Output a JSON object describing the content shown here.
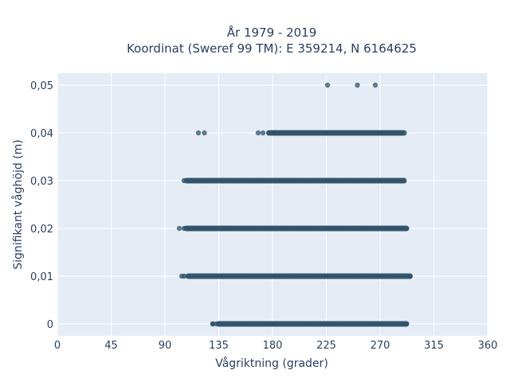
{
  "chart_data": {
    "type": "scatter",
    "title_line1": "År 1979 - 2019",
    "title_line2": "Koordinat (Sweref 99 TM): E 359214, N 6164625",
    "xlabel": "Vågriktning (grader)",
    "ylabel": "Signifikant våghöjd (m)",
    "xlim": [
      0,
      360
    ],
    "ylim": [
      -0.0025,
      0.0525
    ],
    "x_ticks": [
      0,
      45,
      90,
      135,
      180,
      225,
      270,
      315,
      360
    ],
    "x_tick_labels": [
      "0",
      "45",
      "90",
      "135",
      "180",
      "225",
      "270",
      "315",
      "360"
    ],
    "y_ticks": [
      0,
      0.01,
      0.02,
      0.03,
      0.04,
      0.05
    ],
    "y_tick_labels": [
      "0",
      "0,01",
      "0,02",
      "0,03",
      "0,04",
      "0,05"
    ],
    "grid": true,
    "plot_background": "#e5ecf6",
    "point_color": "#2f5369",
    "bands": [
      {
        "y": 0.0,
        "x_start": 130,
        "x_end": 292,
        "dense_start": 135
      },
      {
        "y": 0.01,
        "x_start": 106,
        "x_end": 295,
        "dense_start": 110
      },
      {
        "y": 0.02,
        "x_start": 106,
        "x_end": 292,
        "dense_start": 108
      },
      {
        "y": 0.03,
        "x_start": 106,
        "x_end": 290,
        "dense_start": 108
      },
      {
        "y": 0.04,
        "x_start": 177,
        "x_end": 290,
        "dense_start": 177
      }
    ],
    "outliers": [
      {
        "x": 130,
        "y": 0.0
      },
      {
        "x": 104,
        "y": 0.01
      },
      {
        "x": 102,
        "y": 0.02
      },
      {
        "x": 118,
        "y": 0.04
      },
      {
        "x": 123,
        "y": 0.04
      },
      {
        "x": 168,
        "y": 0.04
      },
      {
        "x": 172,
        "y": 0.04
      },
      {
        "x": 226,
        "y": 0.05
      },
      {
        "x": 251,
        "y": 0.05
      },
      {
        "x": 266,
        "y": 0.05
      }
    ]
  }
}
